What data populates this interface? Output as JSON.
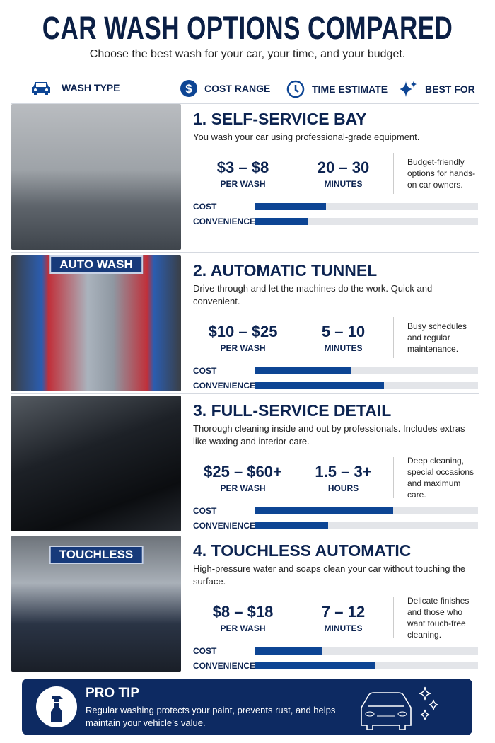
{
  "title": "CAR WASH OPTIONS COMPARED",
  "subtitle": "Choose the best wash for your car, your time, and your budget.",
  "headers": [
    {
      "label": "WASH TYPE",
      "icon": "car-icon"
    },
    {
      "label": "COST RANGE",
      "icon": "dollar-icon"
    },
    {
      "label": "TIME ESTIMATE",
      "icon": "clock-icon"
    },
    {
      "label": "BEST FOR",
      "icon": "sparkle-icon"
    }
  ],
  "bar_labels": {
    "cost": "COST",
    "convenience": "CONVENIENCE"
  },
  "colors": {
    "navy": "#0d2451",
    "bar": "#0d4594",
    "track": "#e3e5e9",
    "tip_bg": "#0d2a62"
  },
  "options": [
    {
      "title": "1. SELF-SERVICE BAY",
      "desc": "You wash your car using professional-grade equipment.",
      "cost": "$3 – $8",
      "cost_unit": "PER WASH",
      "time": "20 – 30",
      "time_unit": "MINUTES",
      "best_for": "Budget-friendly options for hands-on car owners.",
      "sign": "",
      "cost_level": 32,
      "convenience_level": 24
    },
    {
      "title": "2. AUTOMATIC TUNNEL",
      "desc": "Drive through and let the machines do the work. Quick and convenient.",
      "cost": "$10 – $25",
      "cost_unit": "PER WASH",
      "time": "5 – 10",
      "time_unit": "MINUTES",
      "best_for": "Busy schedules and regular maintenance.",
      "sign": "AUTO WASH",
      "cost_level": 43,
      "convenience_level": 58
    },
    {
      "title": "3. FULL-SERVICE DETAIL",
      "desc": "Thorough cleaning inside and out by professionals. Includes extras like waxing and interior care.",
      "cost": "$25 – $60+",
      "cost_unit": "PER WASH",
      "time": "1.5 – 3+",
      "time_unit": "HOURS",
      "best_for": "Deep cleaning, special occasions and maximum care.",
      "sign": "",
      "cost_level": 62,
      "convenience_level": 33
    },
    {
      "title": "4. TOUCHLESS AUTOMATIC",
      "desc": "High-pressure water and soaps clean your car without touching the surface.",
      "cost": "$8 – $18",
      "cost_unit": "PER WASH",
      "time": "7 – 12",
      "time_unit": "MINUTES",
      "best_for": "Delicate finishes and those who want touch-free cleaning.",
      "sign": "TOUCHLESS",
      "cost_level": 30,
      "convenience_level": 54
    }
  ],
  "pro_tip": {
    "title": "PRO TIP",
    "text": "Regular washing protects your paint, prevents rust, and helps maintain your vehicle’s value."
  }
}
